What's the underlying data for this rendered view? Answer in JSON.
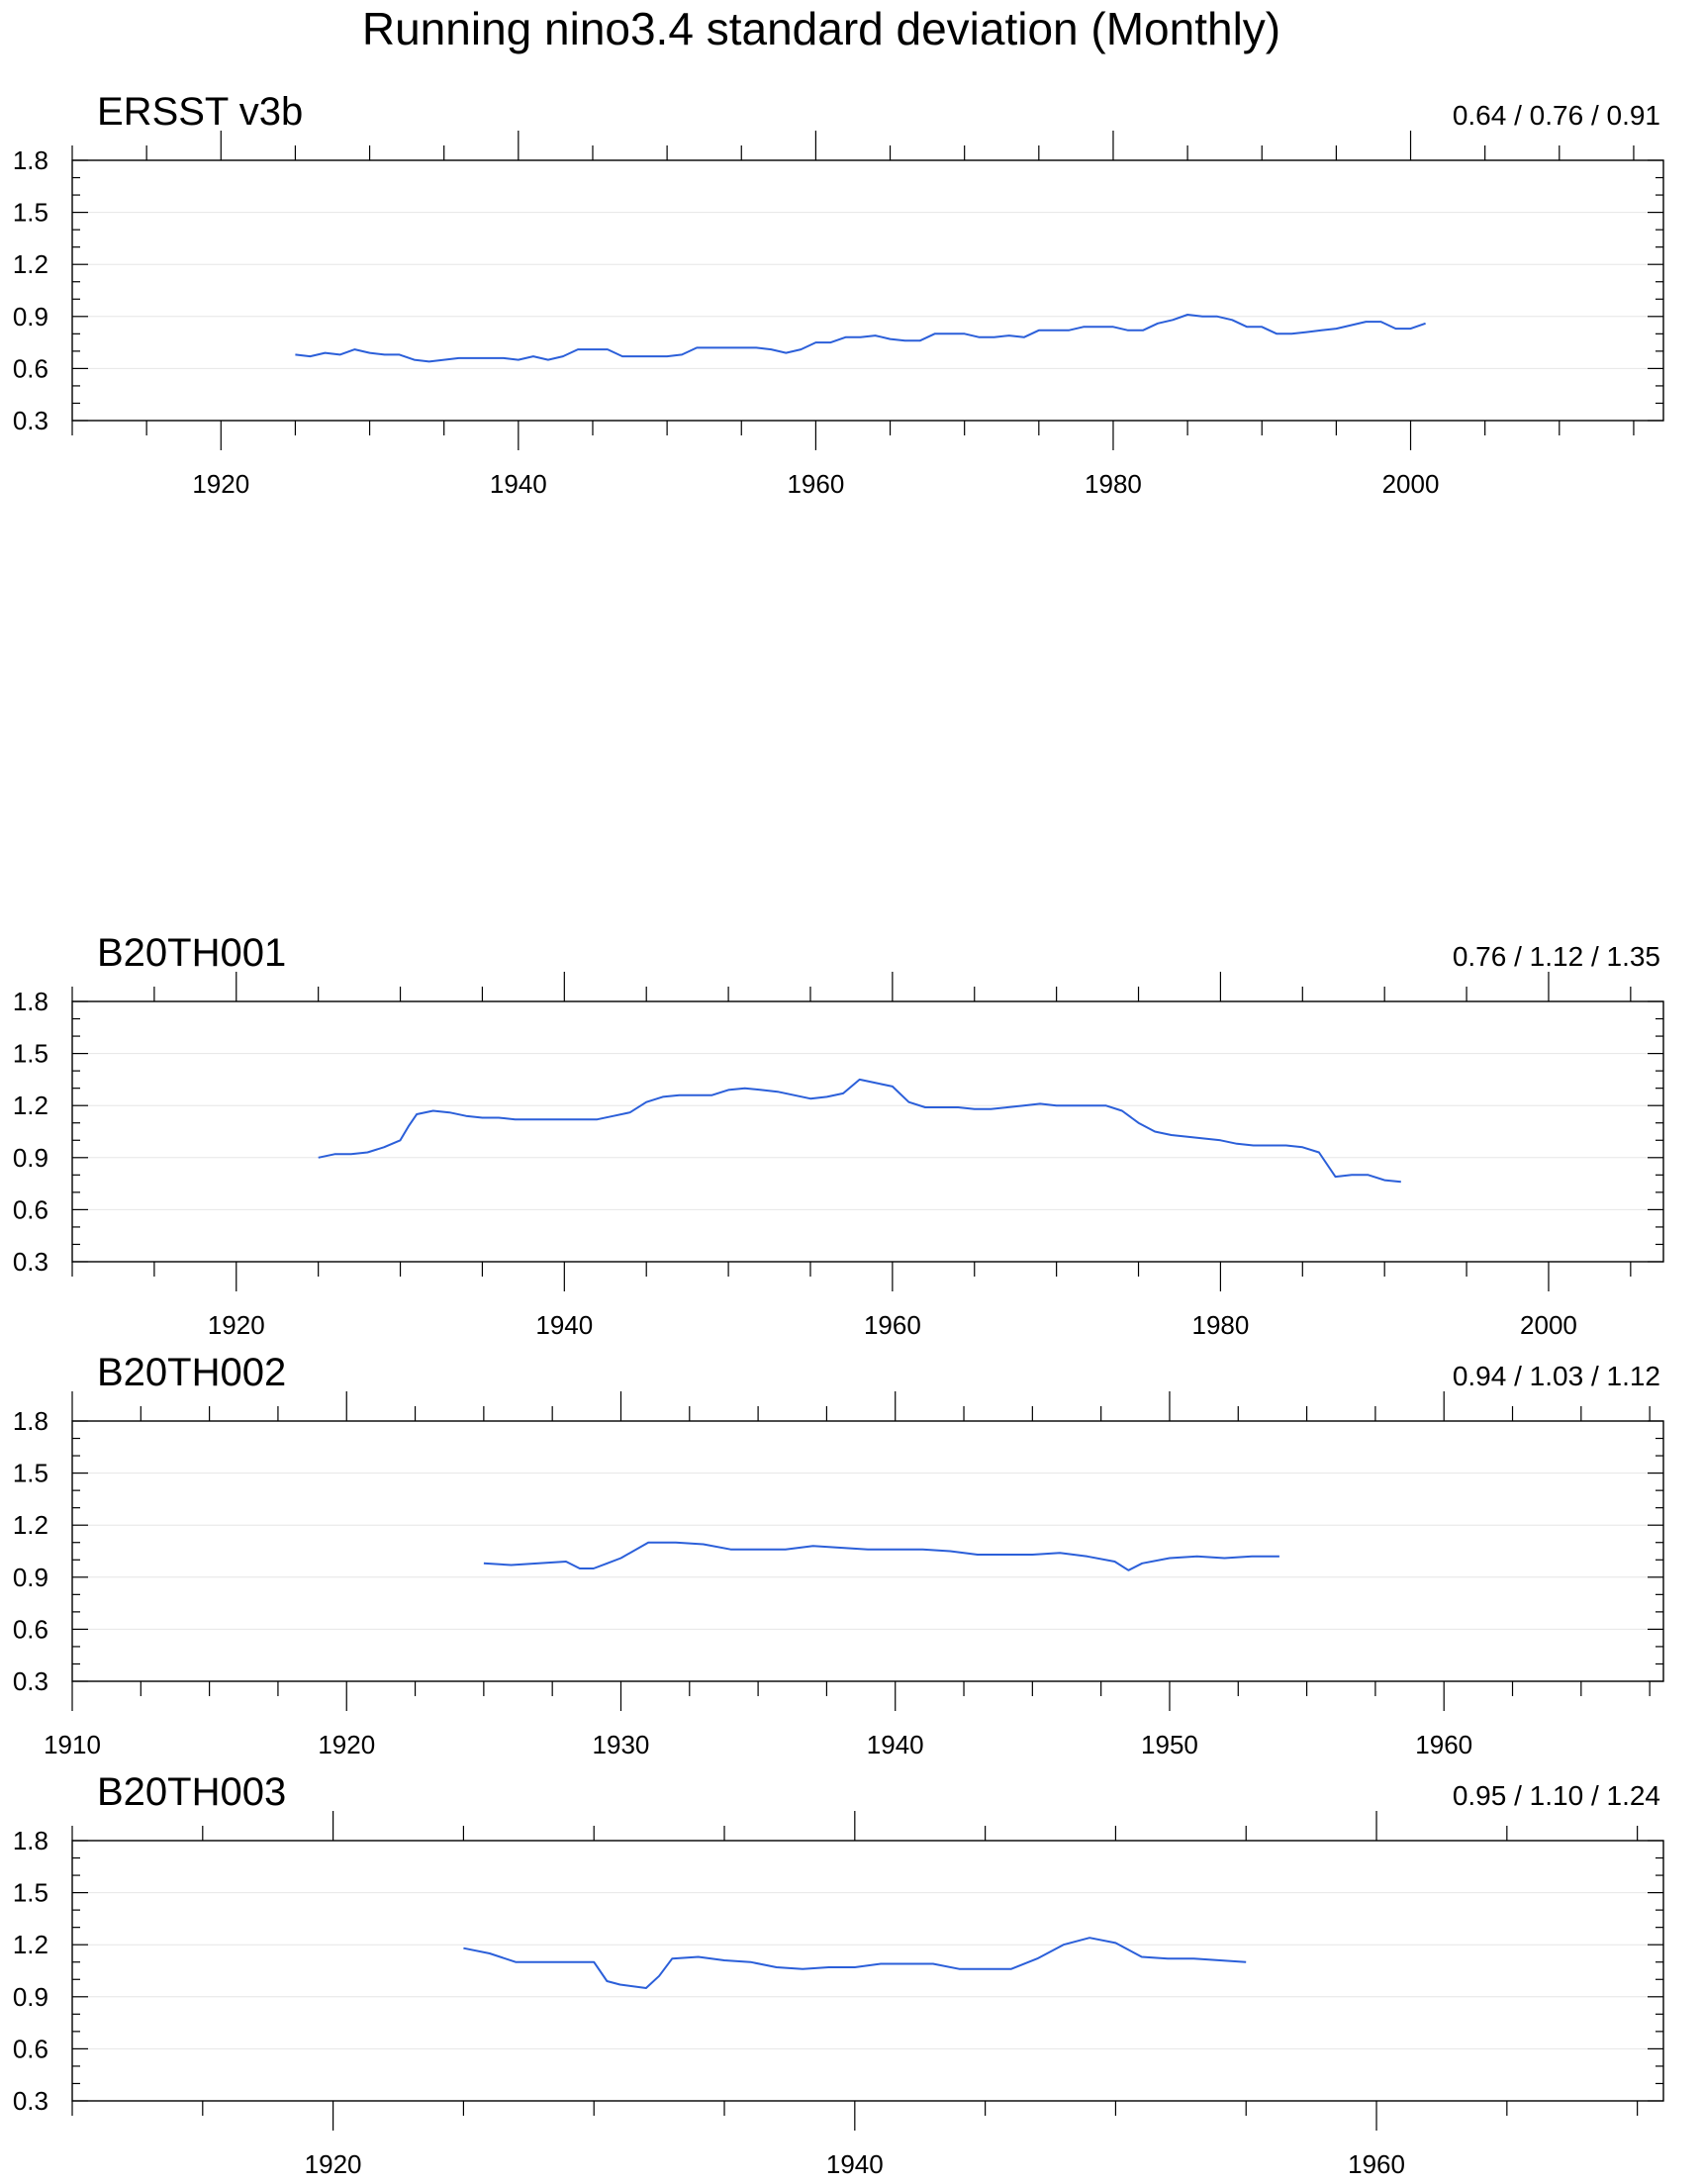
{
  "title": "Running nino3.4 standard deviation (Monthly)",
  "colors": {
    "series": "#2b5fd9",
    "axis": "#000000",
    "grid": "#e6e6e6"
  },
  "chart_data": [
    {
      "type": "line",
      "title": "ERSST v3b",
      "stats": "0.64 / 0.76 / 0.91",
      "xlim": [
        1910,
        2017
      ],
      "ylim": [
        0.3,
        1.8
      ],
      "yticks": [
        "0.3",
        "0.6",
        "0.9",
        "1.2",
        "1.5",
        "1.8"
      ],
      "xticks": [
        "1920",
        "1940",
        "1960",
        "1980",
        "2000"
      ],
      "series": [
        {
          "name": "ERSST v3b",
          "x": [
            1925,
            1926,
            1927,
            1928,
            1929,
            1930,
            1931,
            1932,
            1933,
            1934,
            1935,
            1936,
            1937,
            1938,
            1939,
            1940,
            1941,
            1942,
            1943,
            1944,
            1945,
            1946,
            1947,
            1948,
            1949,
            1950,
            1951,
            1952,
            1953,
            1954,
            1955,
            1956,
            1957,
            1958,
            1959,
            1960,
            1961,
            1962,
            1963,
            1964,
            1965,
            1966,
            1967,
            1968,
            1969,
            1970,
            1971,
            1972,
            1973,
            1974,
            1975,
            1976,
            1977,
            1978,
            1979,
            1980,
            1981,
            1982,
            1983,
            1984,
            1985,
            1986,
            1987,
            1988,
            1989,
            1990,
            1991,
            1992,
            1993,
            1994,
            1995,
            1996,
            1997,
            1998,
            1999,
            2000,
            2001
          ],
          "values": [
            0.68,
            0.67,
            0.69,
            0.68,
            0.71,
            0.69,
            0.68,
            0.68,
            0.65,
            0.64,
            0.65,
            0.66,
            0.66,
            0.66,
            0.66,
            0.65,
            0.67,
            0.65,
            0.67,
            0.71,
            0.71,
            0.71,
            0.67,
            0.67,
            0.67,
            0.67,
            0.68,
            0.72,
            0.72,
            0.72,
            0.72,
            0.72,
            0.71,
            0.69,
            0.71,
            0.75,
            0.75,
            0.78,
            0.78,
            0.79,
            0.77,
            0.76,
            0.76,
            0.8,
            0.8,
            0.8,
            0.78,
            0.78,
            0.79,
            0.78,
            0.82,
            0.82,
            0.82,
            0.84,
            0.84,
            0.84,
            0.82,
            0.82,
            0.86,
            0.88,
            0.91,
            0.9,
            0.9,
            0.88,
            0.84,
            0.84,
            0.8,
            0.8,
            0.81,
            0.82,
            0.83,
            0.85,
            0.87,
            0.87,
            0.83,
            0.83,
            0.86
          ]
        }
      ]
    },
    {
      "type": "line",
      "title": "B20TH001",
      "stats": "0.76 / 1.12 / 1.35",
      "xlim": [
        1910,
        2007
      ],
      "ylim": [
        0.3,
        1.8
      ],
      "yticks": [
        "0.3",
        "0.6",
        "0.9",
        "1.2",
        "1.5",
        "1.8"
      ],
      "xticks": [
        "1920",
        "1940",
        "1960",
        "1980",
        "2000"
      ],
      "series": [
        {
          "name": "B20TH001",
          "x": [
            1925,
            1926,
            1927,
            1928,
            1929,
            1930,
            1930.5,
            1931,
            1932,
            1933,
            1934,
            1935,
            1936,
            1937,
            1938,
            1939,
            1940,
            1941,
            1942,
            1943,
            1944,
            1945,
            1946,
            1947,
            1948,
            1949,
            1950,
            1951,
            1952,
            1953,
            1954,
            1955,
            1956,
            1957,
            1958,
            1959,
            1960,
            1961,
            1962,
            1963,
            1964,
            1965,
            1966,
            1967,
            1968,
            1969,
            1970,
            1971,
            1972,
            1973,
            1974,
            1975,
            1976,
            1977,
            1978,
            1979,
            1980,
            1981,
            1982,
            1983,
            1984,
            1985,
            1986,
            1987,
            1988,
            1989,
            1990,
            1991
          ],
          "values": [
            0.9,
            0.92,
            0.92,
            0.93,
            0.96,
            1.0,
            1.08,
            1.15,
            1.17,
            1.16,
            1.14,
            1.13,
            1.13,
            1.12,
            1.12,
            1.12,
            1.12,
            1.12,
            1.12,
            1.14,
            1.16,
            1.22,
            1.25,
            1.26,
            1.26,
            1.26,
            1.29,
            1.3,
            1.29,
            1.28,
            1.26,
            1.24,
            1.25,
            1.27,
            1.35,
            1.33,
            1.31,
            1.22,
            1.19,
            1.19,
            1.19,
            1.18,
            1.18,
            1.19,
            1.2,
            1.21,
            1.2,
            1.2,
            1.2,
            1.2,
            1.17,
            1.1,
            1.05,
            1.03,
            1.02,
            1.01,
            1.0,
            0.98,
            0.97,
            0.97,
            0.97,
            0.96,
            0.93,
            0.79,
            0.8,
            0.8,
            0.77,
            0.76
          ]
        }
      ]
    },
    {
      "type": "line",
      "title": "B20TH002",
      "stats": "0.94 / 1.03 / 1.12",
      "xlim": [
        1910,
        1968
      ],
      "ylim": [
        0.3,
        1.8
      ],
      "yticks": [
        "0.3",
        "0.6",
        "0.9",
        "1.2",
        "1.5",
        "1.8"
      ],
      "xticks": [
        "1910",
        "1920",
        "1930",
        "1940",
        "1950",
        "1960"
      ],
      "series": [
        {
          "name": "B20TH002",
          "x": [
            1925,
            1926,
            1927,
            1928,
            1928.5,
            1929,
            1929.5,
            1930,
            1931,
            1932,
            1933,
            1934,
            1935,
            1936,
            1937,
            1938,
            1939,
            1940,
            1941,
            1942,
            1943,
            1944,
            1945,
            1946,
            1947,
            1948,
            1948.5,
            1949,
            1950,
            1951,
            1952,
            1953,
            1954
          ],
          "values": [
            0.98,
            0.97,
            0.98,
            0.99,
            0.95,
            0.95,
            0.98,
            1.01,
            1.1,
            1.1,
            1.09,
            1.06,
            1.06,
            1.06,
            1.08,
            1.07,
            1.06,
            1.06,
            1.06,
            1.05,
            1.03,
            1.03,
            1.03,
            1.04,
            1.02,
            0.99,
            0.94,
            0.98,
            1.01,
            1.02,
            1.01,
            1.02,
            1.02
          ]
        }
      ]
    },
    {
      "type": "line",
      "title": "B20TH003",
      "stats": "0.95 / 1.10 / 1.24",
      "xlim": [
        1910,
        1971
      ],
      "ylim": [
        0.3,
        1.8
      ],
      "yticks": [
        "0.3",
        "0.6",
        "0.9",
        "1.2",
        "1.5",
        "1.8"
      ],
      "xticks": [
        "1920",
        "1940",
        "1960"
      ],
      "series": [
        {
          "name": "B20TH003",
          "x": [
            1925,
            1926,
            1927,
            1928,
            1929,
            1930,
            1930.5,
            1931,
            1932,
            1932.5,
            1933,
            1934,
            1935,
            1936,
            1937,
            1938,
            1939,
            1940,
            1941,
            1942,
            1943,
            1944,
            1945,
            1946,
            1947,
            1948,
            1949,
            1950,
            1951,
            1952,
            1953,
            1954,
            1955
          ],
          "values": [
            1.18,
            1.15,
            1.1,
            1.1,
            1.1,
            1.1,
            0.99,
            0.97,
            0.95,
            1.02,
            1.12,
            1.13,
            1.11,
            1.1,
            1.07,
            1.06,
            1.07,
            1.07,
            1.09,
            1.09,
            1.09,
            1.06,
            1.06,
            1.06,
            1.12,
            1.2,
            1.24,
            1.21,
            1.13,
            1.12,
            1.12,
            1.11,
            1.1
          ]
        }
      ]
    }
  ]
}
